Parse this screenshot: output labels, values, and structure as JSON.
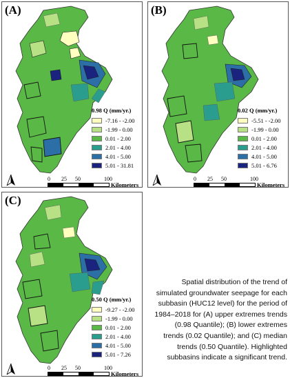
{
  "panels": [
    {
      "label": "(A)",
      "legend_title": "0.98 Q (mm/yr.)",
      "classes": [
        "-7.16 - -2.00",
        "-1.99 - 0.00",
        "0.01 - 2.00",
        "2.01 - 4.00",
        "4.01 - 5.00",
        "5.01 - 31.81"
      ],
      "scale_ticks": [
        "0",
        "25",
        "50",
        "100"
      ],
      "scale_unit": "Kilometers"
    },
    {
      "label": "(B)",
      "legend_title": "0.02 Q (mm/yr.)",
      "classes": [
        "-5.51 - -2.00",
        "-1.99 - 0.00",
        "0.01 - 2.00",
        "2.01 - 4.00",
        "4.01 - 5.00",
        "5.01 - 6.76"
      ],
      "scale_ticks": [
        "0",
        "25",
        "50",
        "100"
      ],
      "scale_unit": "Kilometers"
    },
    {
      "label": "(C)",
      "legend_title": "0.50 Q (mm/yr.)",
      "classes": [
        "-9.27 - -2.00",
        "-1.99 - 0.00",
        "0.01 - 2.00",
        "2.01 - 4.00",
        "4.01 - 5.00",
        "5.01 - 7.26"
      ],
      "scale_ticks": [
        "0",
        "25",
        "50",
        "100"
      ],
      "scale_unit": "Kilometers"
    }
  ],
  "class_colors": [
    "#ffffbf",
    "#b8e186",
    "#5ab946",
    "#2a9d8f",
    "#2c6fa7",
    "#1a237e"
  ],
  "caption": "Spatial distribution of the trend of simulated groundwater seepage for each subbasin (HUC12 level) for the period of 1984–2018 for (A) upper extremes trends (0.98 Quantile); (B) lower extremes trends (0.02 Quantile); and (C) median trends (0.50 Quantile). Highlighted subbasins indicate a significant trend."
}
